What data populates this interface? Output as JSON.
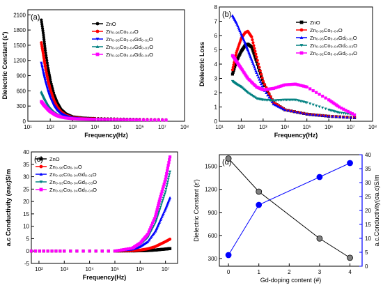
{
  "chart_data": [
    {
      "type": "scatter",
      "panel_label": "(a)",
      "xlabel": "Frequency(Hz)",
      "ylabel": "Dielectric Constant (ε')",
      "xscale": "log",
      "xlim": [
        10,
        100000000
      ],
      "ylim": [
        0,
        2200
      ],
      "xticks": [
        "10¹",
        "10²",
        "10³",
        "10⁴",
        "10⁵",
        "10⁶",
        "10⁷",
        "10⁸"
      ],
      "yticks": [
        "0",
        "300",
        "600",
        "900",
        "1200",
        "1500",
        "1800",
        "2100"
      ],
      "legend_position": "top-right",
      "series": [
        {
          "name": "ZnO",
          "color": "#000000",
          "marker": "circle",
          "x": [
            40,
            50,
            60,
            80,
            100,
            150,
            200,
            300,
            500,
            1000,
            3000,
            10000,
            100000,
            1000000,
            15000000
          ],
          "y": [
            2000,
            1700,
            1400,
            1050,
            820,
            520,
            380,
            240,
            150,
            90,
            65,
            55,
            45,
            38,
            30
          ]
        },
        {
          "name": "Zn₀.₉₆Co₀.₀₄O",
          "color": "#ff0000",
          "marker": "circle",
          "x": [
            40,
            50,
            60,
            80,
            100,
            150,
            200,
            300,
            500,
            1000,
            3000,
            10000,
            100000,
            1000000,
            15000000
          ],
          "y": [
            1550,
            1300,
            1080,
            800,
            630,
            400,
            290,
            190,
            120,
            75,
            55,
            48,
            40,
            34,
            28
          ]
        },
        {
          "name": "Zn₀.₉₅Co₀.₀₄Gd₀.₀₁O",
          "color": "#0000ff",
          "marker": "triangle-down",
          "x": [
            40,
            50,
            60,
            80,
            100,
            150,
            200,
            300,
            500,
            1000,
            3000,
            10000,
            100000,
            1000000,
            15000000
          ],
          "y": [
            1150,
            950,
            800,
            600,
            470,
            300,
            220,
            150,
            100,
            65,
            50,
            44,
            38,
            32,
            26
          ]
        },
        {
          "name": "Zn₀.₉₃Co₀.₀₄Gd₀.₀₃O",
          "color": "#008080",
          "marker": "triangle",
          "x": [
            40,
            50,
            60,
            80,
            100,
            150,
            200,
            300,
            500,
            1000,
            3000,
            10000,
            100000,
            1000000,
            15000000
          ],
          "y": [
            580,
            490,
            420,
            320,
            260,
            180,
            140,
            100,
            75,
            55,
            45,
            40,
            35,
            30,
            25
          ]
        },
        {
          "name": "Zn₀.₉₂Co₀.₀₄Gd₀.₀₄O",
          "color": "#ff00ff",
          "marker": "square",
          "x": [
            40,
            50,
            60,
            80,
            100,
            150,
            200,
            300,
            500,
            1000,
            3000,
            10000,
            100000,
            1000000,
            15000000
          ],
          "y": [
            390,
            330,
            290,
            230,
            190,
            140,
            110,
            85,
            65,
            50,
            42,
            37,
            33,
            28,
            24
          ]
        }
      ]
    },
    {
      "type": "scatter",
      "panel_label": "(b)",
      "xlabel": "Frequency(Hz)",
      "ylabel": "Dielectric Loss",
      "xscale": "log",
      "xlim": [
        10,
        100000000
      ],
      "ylim": [
        0,
        8
      ],
      "xticks": [
        "10¹",
        "10²",
        "10³",
        "10⁴",
        "10⁵",
        "10⁶",
        "10⁷",
        "10⁸"
      ],
      "yticks": [
        "0",
        "1",
        "2",
        "3",
        "4",
        "5",
        "6",
        "7",
        "8"
      ],
      "legend_position": "top-right",
      "series": [
        {
          "name": "ZnO",
          "color": "#000000",
          "marker": "square",
          "x": [
            40,
            60,
            100,
            150,
            200,
            300,
            500,
            1000,
            3000,
            10000,
            100000,
            1000000,
            15000000
          ],
          "y": [
            3.3,
            4.2,
            4.9,
            5.3,
            5.4,
            5.2,
            4.2,
            2.7,
            1.3,
            0.8,
            0.5,
            0.35,
            0.25
          ]
        },
        {
          "name": "Zn₀.₉₆Co₀.₀₄O",
          "color": "#ff0000",
          "marker": "circle",
          "x": [
            40,
            60,
            100,
            150,
            200,
            300,
            500,
            1000,
            3000,
            10000,
            100000,
            1000000,
            15000000
          ],
          "y": [
            3.6,
            4.8,
            5.8,
            6.2,
            6.3,
            5.9,
            4.5,
            2.8,
            1.3,
            0.8,
            0.5,
            0.35,
            0.25
          ]
        },
        {
          "name": "Zn₀.₉₅Co₀.₀₄Gd₀.₀₁O",
          "color": "#0000ff",
          "marker": "triangle",
          "x": [
            40,
            60,
            100,
            150,
            200,
            300,
            500,
            1000,
            3000,
            10000,
            100000,
            1000000,
            15000000
          ],
          "y": [
            7.4,
            6.9,
            6.1,
            5.5,
            5.0,
            4.3,
            3.4,
            2.3,
            1.2,
            0.8,
            0.5,
            0.35,
            0.25
          ]
        },
        {
          "name": "Zn₀.₉₃Co₀.₀₄Gd₀.₀₃O",
          "color": "#008080",
          "marker": "triangle-down",
          "x": [
            40,
            60,
            100,
            200,
            500,
            1000,
            3000,
            10000,
            30000,
            100000,
            1000000,
            3000000,
            15000000
          ],
          "y": [
            2.8,
            2.6,
            2.4,
            2.0,
            1.6,
            1.5,
            1.45,
            1.5,
            1.5,
            1.3,
            0.8,
            0.6,
            0.45
          ]
        },
        {
          "name": "Zn₀.₉₂Co₀.₀₄Gd₀.₀₄O",
          "color": "#ff00ff",
          "marker": "square",
          "x": [
            40,
            60,
            100,
            200,
            500,
            1000,
            3000,
            10000,
            30000,
            100000,
            1000000,
            3000000,
            15000000
          ],
          "y": [
            4.6,
            4.2,
            3.7,
            3.0,
            2.4,
            2.2,
            2.3,
            2.55,
            2.6,
            2.4,
            1.5,
            1.0,
            0.45
          ]
        }
      ]
    },
    {
      "type": "scatter",
      "panel_label": "(c)",
      "xlabel": "Frequency(Hz)",
      "ylabel": "a.c Conductivity (σac)S/m",
      "xscale": "log",
      "xlim": [
        50,
        30000000
      ],
      "ylim": [
        -5,
        40
      ],
      "xticks": [
        "10²",
        "10³",
        "10⁴",
        "10⁵",
        "10⁶",
        "10⁷"
      ],
      "yticks": [
        "-5",
        "0",
        "5",
        "10",
        "15",
        "20",
        "25",
        "30",
        "35",
        "40"
      ],
      "legend_position": "top-left",
      "series": [
        {
          "name": "ZnO",
          "color": "#000000",
          "marker": "square",
          "x": [
            50,
            1000,
            100000,
            500000,
            1000000,
            2000000,
            4000000,
            6000000,
            10000000,
            15000000
          ],
          "y": [
            0,
            0,
            0,
            0.05,
            0.1,
            0.2,
            0.4,
            0.6,
            0.8,
            1.0
          ]
        },
        {
          "name": "Zn₀.₉₆Co₀.₀₄O",
          "color": "#ff0000",
          "marker": "circle",
          "x": [
            50,
            1000,
            100000,
            500000,
            1000000,
            2000000,
            4000000,
            6000000,
            10000000,
            15000000
          ],
          "y": [
            0,
            0,
            0,
            0.15,
            0.4,
            0.9,
            1.8,
            2.7,
            3.8,
            4.8
          ]
        },
        {
          "name": "Zn₀.₉₅Co₀.₀₄Gd₀.₀₁O",
          "color": "#0000ff",
          "marker": "triangle",
          "x": [
            50,
            1000,
            100000,
            500000,
            1000000,
            2000000,
            4000000,
            6000000,
            10000000,
            15000000
          ],
          "y": [
            0,
            0,
            0,
            0.7,
            1.8,
            3.8,
            8,
            12,
            17,
            21.5
          ]
        },
        {
          "name": "Zn₀.₉₃Co₀.₀₄Gd₀.₀₃O",
          "color": "#008080",
          "marker": "triangle-down",
          "x": [
            50,
            1000,
            100000,
            500000,
            1000000,
            2000000,
            4000000,
            6000000,
            10000000,
            15000000
          ],
          "y": [
            0,
            0,
            0,
            1,
            2.6,
            5.5,
            11.5,
            17,
            24,
            32
          ]
        },
        {
          "name": "Zn₀.₉₂Co₀.₀₄Gd₀.₀₄O",
          "color": "#ff00ff",
          "marker": "square",
          "x": [
            50,
            1000,
            100000,
            500000,
            1000000,
            2000000,
            4000000,
            6000000,
            10000000,
            15000000
          ],
          "y": [
            0,
            0,
            0,
            1.2,
            3.2,
            6.8,
            14,
            21,
            29,
            38
          ]
        }
      ]
    },
    {
      "type": "line",
      "panel_label": "(d)",
      "xlabel": "Gd-doping content (#)",
      "ylabel": "Dielectric Constant (ε')",
      "ylabel_right": "a.c.Conductivity(σa.c)S/m",
      "xlim": [
        -0.3,
        4.4
      ],
      "ylim_left": [
        200,
        1650
      ],
      "ylim_right": [
        0,
        40
      ],
      "xticks": [
        "0",
        "1",
        "2",
        "3",
        "4"
      ],
      "yticks_left": [
        "300",
        "600",
        "900",
        "1200",
        "1500"
      ],
      "yticks_right": [
        "0",
        "5",
        "10",
        "15",
        "20",
        "25",
        "30",
        "35",
        "40"
      ],
      "series": [
        {
          "axis": "left",
          "color": "#000000",
          "marker_fill": "#808080",
          "x": [
            0,
            1,
            3,
            4
          ],
          "y": [
            1600,
            1170,
            560,
            310
          ]
        },
        {
          "axis": "right",
          "color": "#0000ff",
          "marker_fill": "#0000ff",
          "x": [
            0,
            1,
            3,
            4
          ],
          "y": [
            4,
            22,
            32,
            37
          ]
        }
      ]
    }
  ]
}
